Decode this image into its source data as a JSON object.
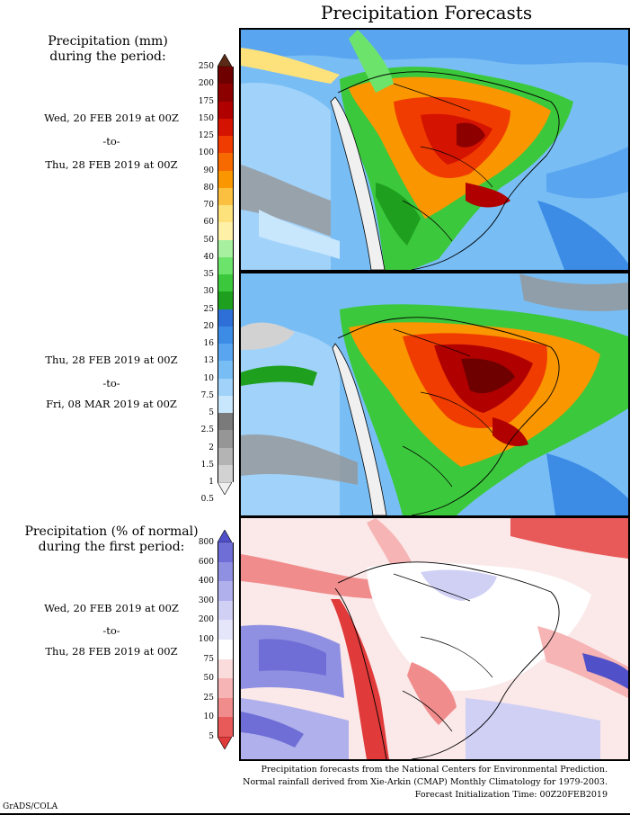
{
  "title": "Precipitation Forecasts",
  "panel1": {
    "heading_line1": "Precipitation (mm)",
    "heading_line2": "during the period:",
    "date_from": "Wed, 20 FEB 2019 at 00Z",
    "to": "-to-",
    "date_to": "Thu, 28 FEB 2019 at 00Z"
  },
  "panel2": {
    "date_from": "Thu, 28 FEB 2019 at 00Z",
    "to": "-to-",
    "date_to": "Fri, 08 MAR 2019 at 00Z"
  },
  "panel3": {
    "heading_line1": "Precipitation (% of normal)",
    "heading_line2": "during the first period:",
    "date_from": "Wed, 20 FEB 2019 at 00Z",
    "to": "-to-",
    "date_to": "Thu, 28 FEB 2019 at 00Z"
  },
  "precip_colorbar": {
    "labels": [
      "250",
      "200",
      "175",
      "150",
      "125",
      "100",
      "90",
      "80",
      "70",
      "60",
      "50",
      "40",
      "35",
      "30",
      "25",
      "20",
      "16",
      "13",
      "10",
      "7.5",
      "5",
      "2.5",
      "2",
      "1.5",
      "1",
      "0.5"
    ],
    "colors": [
      "#5a2a16",
      "#6e0000",
      "#8c0000",
      "#b00000",
      "#d41400",
      "#f03c00",
      "#f66a00",
      "#fa9600",
      "#fcc040",
      "#fde17a",
      "#fff0a8",
      "#a6f0a0",
      "#6ce46c",
      "#3cc83c",
      "#1ea01e",
      "#2d6ed7",
      "#3c8ce6",
      "#5aa5f0",
      "#78bef5",
      "#a0d2fa",
      "#c8e6fc",
      "#7a7a7a",
      "#969696",
      "#b4b4b4",
      "#d2d2d2",
      "#f0f0f0"
    ]
  },
  "percent_colorbar": {
    "labels": [
      "800",
      "600",
      "400",
      "300",
      "200",
      "100",
      "75",
      "50",
      "25",
      "10",
      "5"
    ],
    "colors": [
      "#5050c8",
      "#6e6ed6",
      "#9090e2",
      "#b0b0ec",
      "#d0d0f5",
      "#e6e6fa",
      "#ffffff",
      "#fadcdc",
      "#f6b4b4",
      "#f08c8c",
      "#e85a5a",
      "#e03a3a"
    ]
  },
  "footer": {
    "line1": "Precipitation forecasts from the National Centers for Environmental Prediction.",
    "line2": "Normal rainfall derived from Xie-Arkin (CMAP) Monthly Climatology for 1979-2003.",
    "line3": "Forecast Initialization Time: 00Z20FEB2019"
  },
  "credit": "GrADS/COLA"
}
